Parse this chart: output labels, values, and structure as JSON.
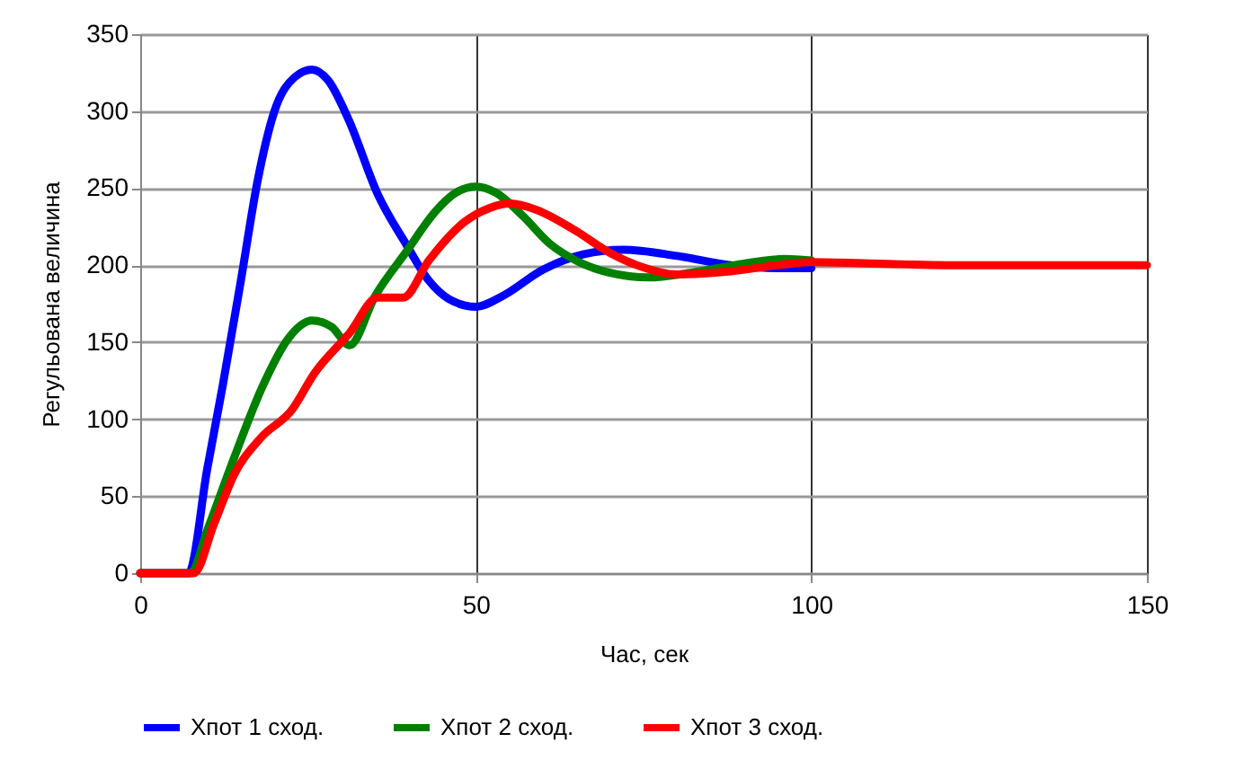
{
  "chart_data": {
    "type": "line",
    "xlabel": "Час, сек",
    "ylabel": "Регульована величина",
    "xlim": [
      0,
      150
    ],
    "xticks": [
      0,
      50,
      100,
      150
    ],
    "ylim": [
      0,
      350
    ],
    "yticks": [
      0,
      50,
      100,
      150,
      200,
      250,
      300,
      350
    ],
    "grid": true,
    "legend": "bottom",
    "marker": "none",
    "line_style": "solid",
    "series": [
      {
        "name": "Хпот 1 сход.",
        "color": "#0000ff",
        "x": [
          0,
          7.2,
          10,
          12.3,
          15,
          17.5,
          20,
          23,
          25.6,
          28,
          31,
          35.4,
          39.7,
          43,
          46,
          50,
          54,
          60,
          66,
          72,
          80,
          88,
          95,
          100
        ],
        "values": [
          0,
          0,
          68,
          122,
          190,
          255,
          300,
          322,
          327,
          320,
          295,
          246,
          213,
          190,
          178,
          173,
          180,
          197,
          207,
          210,
          206,
          200,
          198,
          198
        ]
      },
      {
        "name": "Хпот 2 сход.",
        "color": "#008000",
        "x": [
          0,
          7.5,
          10,
          14,
          18.3,
          22,
          25.6,
          28.5,
          31.2,
          35,
          39.7,
          44,
          47,
          50,
          53,
          57,
          61,
          65.4,
          70,
          75.7,
          82,
          90,
          96,
          100
        ],
        "values": [
          0,
          0,
          28,
          75,
          122,
          152,
          164,
          160,
          148,
          180,
          209,
          235,
          247,
          251,
          247,
          232,
          214,
          202,
          195,
          192,
          195,
          201,
          204,
          203
        ]
      },
      {
        "name": "Хпот 3 сход.",
        "color": "#ff0000",
        "x": [
          0,
          8,
          11,
          14,
          18,
          22.6,
          26,
          31.2,
          35.4,
          39.2,
          43,
          48.3,
          52,
          55.1,
          59,
          65,
          70,
          74,
          80,
          88,
          95,
          100,
          110,
          120,
          150
        ],
        "values": [
          0,
          0,
          32,
          64,
          88,
          106,
          130,
          156,
          179,
          179,
          203,
          228,
          237,
          240,
          236,
          222,
          208,
          200,
          194,
          196,
          200,
          202,
          201,
          200,
          200
        ]
      }
    ]
  }
}
